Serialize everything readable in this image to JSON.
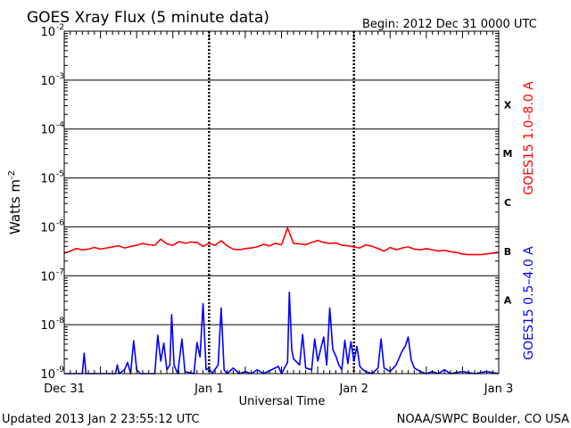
{
  "chart_data": {
    "type": "line",
    "title": "GOES Xray Flux (5 minute data)",
    "begin_label": "Begin:  2012 Dec 31 0000 UTC",
    "xlabel": "Universal Time",
    "ylabel": "Watts m",
    "ylabel_exponent": "-2",
    "x_unit": "hours since 2012 Dec 31 0000 UTC",
    "xlim": [
      0,
      72
    ],
    "x_ticks": [
      {
        "x": 0,
        "label": "Dec 31"
      },
      {
        "x": 24,
        "label": "Jan 1"
      },
      {
        "x": 48,
        "label": "Jan 2"
      },
      {
        "x": 72,
        "label": "Jan 3"
      }
    ],
    "y_scale": "log",
    "ylim": [
      1e-09,
      0.01
    ],
    "y_ticks": [
      {
        "exp": -2,
        "label": "10"
      },
      {
        "exp": -3,
        "label": "10"
      },
      {
        "exp": -4,
        "label": "10"
      },
      {
        "exp": -5,
        "label": "10"
      },
      {
        "exp": -6,
        "label": "10"
      },
      {
        "exp": -7,
        "label": "10"
      },
      {
        "exp": -8,
        "label": "10"
      },
      {
        "exp": -9,
        "label": "10"
      }
    ],
    "flare_classes": [
      {
        "label": "X",
        "exp": -3.5
      },
      {
        "label": "M",
        "exp": -4.5
      },
      {
        "label": "C",
        "exp": -5.5
      },
      {
        "label": "B",
        "exp": -6.5
      },
      {
        "label": "A",
        "exp": -7.5
      }
    ],
    "colors": {
      "long": "#ff0000",
      "short": "#0000ff",
      "axis": "#000000"
    },
    "series": [
      {
        "name": "GOES15 1.0–8.0 A",
        "color": "#ff0000",
        "points": [
          [
            0,
            2.9e-07
          ],
          [
            1,
            3.2e-07
          ],
          [
            2,
            3.6e-07
          ],
          [
            3,
            3.4e-07
          ],
          [
            4,
            3.5e-07
          ],
          [
            5,
            3.8e-07
          ],
          [
            6,
            3.5e-07
          ],
          [
            7,
            3.7e-07
          ],
          [
            8,
            3.9e-07
          ],
          [
            9,
            4.1e-07
          ],
          [
            10,
            3.7e-07
          ],
          [
            11,
            4e-07
          ],
          [
            12,
            4.2e-07
          ],
          [
            13,
            4.6e-07
          ],
          [
            14,
            4.3e-07
          ],
          [
            15,
            4.2e-07
          ],
          [
            16,
            5.6e-07
          ],
          [
            17,
            4.5e-07
          ],
          [
            18,
            4.2e-07
          ],
          [
            19,
            5e-07
          ],
          [
            20,
            4.6e-07
          ],
          [
            21,
            4.9e-07
          ],
          [
            22,
            4.8e-07
          ],
          [
            23,
            4e-07
          ],
          [
            24,
            4.6e-07
          ],
          [
            25,
            4.2e-07
          ],
          [
            26,
            5.2e-07
          ],
          [
            27,
            4.1e-07
          ],
          [
            28,
            3.5e-07
          ],
          [
            29,
            3.4e-07
          ],
          [
            30,
            3.6e-07
          ],
          [
            31,
            3.7e-07
          ],
          [
            32,
            3.9e-07
          ],
          [
            33,
            4.4e-07
          ],
          [
            34,
            4.1e-07
          ],
          [
            35,
            4.6e-07
          ],
          [
            36,
            4.3e-07
          ],
          [
            37,
            9.5e-07
          ],
          [
            38,
            4.6e-07
          ],
          [
            39,
            4.5e-07
          ],
          [
            40,
            4.3e-07
          ],
          [
            41,
            4.8e-07
          ],
          [
            42,
            5.3e-07
          ],
          [
            43,
            4.8e-07
          ],
          [
            44,
            4.6e-07
          ],
          [
            45,
            4.7e-07
          ],
          [
            46,
            4.2e-07
          ],
          [
            47,
            4.1e-07
          ],
          [
            48,
            3.9e-07
          ],
          [
            49,
            3.7e-07
          ],
          [
            50,
            4.3e-07
          ],
          [
            51,
            4e-07
          ],
          [
            52,
            3.6e-07
          ],
          [
            53,
            3.2e-07
          ],
          [
            54,
            3.8e-07
          ],
          [
            55,
            3.4e-07
          ],
          [
            56,
            3.7e-07
          ],
          [
            57,
            3.9e-07
          ],
          [
            58,
            3.5e-07
          ],
          [
            59,
            3.4e-07
          ],
          [
            60,
            3.6e-07
          ],
          [
            61,
            3.4e-07
          ],
          [
            62,
            3.2e-07
          ],
          [
            63,
            3.3e-07
          ],
          [
            64,
            3.1e-07
          ],
          [
            65,
            3e-07
          ],
          [
            66,
            2.8e-07
          ],
          [
            67,
            2.7e-07
          ],
          [
            68,
            2.7e-07
          ],
          [
            69,
            2.7e-07
          ],
          [
            70,
            2.8e-07
          ],
          [
            71,
            2.9e-07
          ],
          [
            72,
            3e-07
          ]
        ]
      },
      {
        "name": "GOES15 0.5–4.0 A",
        "color": "#0000ff",
        "points": [
          [
            0,
            1e-09
          ],
          [
            3,
            1e-09
          ],
          [
            3.3,
            2.6e-09
          ],
          [
            3.6,
            1e-09
          ],
          [
            8.5,
            1e-09
          ],
          [
            8.8,
            1.5e-09
          ],
          [
            9.1,
            1e-09
          ],
          [
            10,
            1.2e-09
          ],
          [
            10.5,
            1.7e-09
          ],
          [
            11,
            1e-09
          ],
          [
            11.5,
            4.7e-09
          ],
          [
            12,
            1.2e-09
          ],
          [
            12.6,
            1e-09
          ],
          [
            15,
            1e-09
          ],
          [
            15.5,
            6.1e-09
          ],
          [
            16,
            1.8e-09
          ],
          [
            16.5,
            4.2e-09
          ],
          [
            17,
            1.2e-09
          ],
          [
            17.5,
            1.5e-09
          ],
          [
            17.8,
            1.6e-08
          ],
          [
            18.2,
            1.5e-09
          ],
          [
            18.8,
            1e-09
          ],
          [
            19.5,
            5.1e-09
          ],
          [
            20,
            1.1e-09
          ],
          [
            21.5,
            1e-09
          ],
          [
            22,
            4.3e-09
          ],
          [
            22.5,
            2.2e-09
          ],
          [
            23,
            2.7e-08
          ],
          [
            23.5,
            1.2e-09
          ],
          [
            24,
            1.3e-09
          ],
          [
            24.5,
            1e-09
          ],
          [
            25.5,
            1.5e-09
          ],
          [
            26,
            2.2e-08
          ],
          [
            26.5,
            1.2e-09
          ],
          [
            27,
            1e-09
          ],
          [
            28,
            1.3e-09
          ],
          [
            29,
            1e-09
          ],
          [
            30,
            1.1e-09
          ],
          [
            31,
            1e-09
          ],
          [
            32,
            1.2e-09
          ],
          [
            33,
            1e-09
          ],
          [
            35.5,
            1.4e-09
          ],
          [
            36,
            1e-09
          ],
          [
            37,
            1.7e-09
          ],
          [
            37.3,
            4.6e-08
          ],
          [
            37.7,
            3.1e-09
          ],
          [
            38,
            2e-09
          ],
          [
            39,
            1.5e-09
          ],
          [
            39.5,
            6.3e-09
          ],
          [
            40,
            1.3e-09
          ],
          [
            41,
            1.2e-09
          ],
          [
            41.5,
            5.1e-09
          ],
          [
            42,
            1.8e-09
          ],
          [
            43,
            5.6e-09
          ],
          [
            43.5,
            1.5e-09
          ],
          [
            44,
            2.2e-08
          ],
          [
            44.5,
            3.1e-09
          ],
          [
            45,
            2.3e-09
          ],
          [
            45.5,
            1.5e-09
          ],
          [
            46,
            1.2e-09
          ],
          [
            46.5,
            4.8e-09
          ],
          [
            47,
            1.6e-09
          ],
          [
            47.5,
            4.5e-09
          ],
          [
            48,
            1.8e-09
          ],
          [
            48.5,
            3.6e-09
          ],
          [
            49,
            1.4e-09
          ],
          [
            49.5,
            1.2e-09
          ],
          [
            50,
            1.1e-09
          ],
          [
            51,
            1e-09
          ],
          [
            52,
            1.3e-09
          ],
          [
            52.5,
            5.1e-09
          ],
          [
            53,
            1.3e-09
          ],
          [
            54,
            1.1e-09
          ],
          [
            55,
            1.5e-09
          ],
          [
            56,
            2.9e-09
          ],
          [
            56.5,
            3.6e-09
          ],
          [
            57,
            5.6e-09
          ],
          [
            57.5,
            1.9e-09
          ],
          [
            58,
            1.3e-09
          ],
          [
            59,
            1.1e-09
          ],
          [
            60,
            1e-09
          ],
          [
            61,
            1.1e-09
          ],
          [
            62,
            1e-09
          ],
          [
            63,
            1.2e-09
          ],
          [
            64,
            1e-09
          ],
          [
            66,
            1.1e-09
          ],
          [
            68,
            1e-09
          ],
          [
            70,
            1.1e-09
          ],
          [
            72,
            1e-09
          ]
        ]
      }
    ]
  },
  "footer": {
    "updated": "Updated 2013 Jan  2 23:55:12 UTC",
    "credit": "NOAA/SWPC Boulder, CO USA"
  }
}
